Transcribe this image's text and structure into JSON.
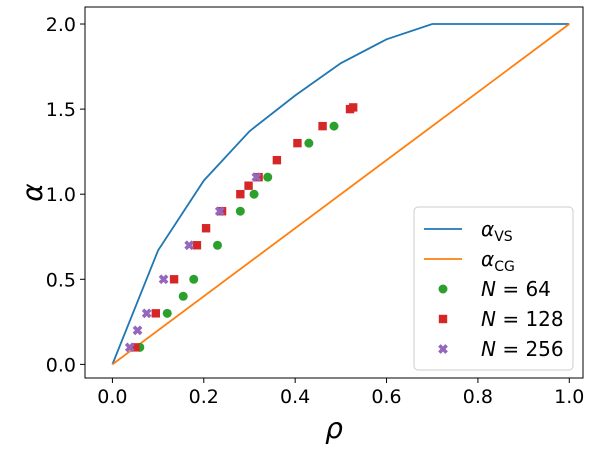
{
  "chart_data": {
    "type": "scatter",
    "xlabel": "ρ",
    "ylabel": "α",
    "xlim": [
      -0.06,
      1.03
    ],
    "ylim": [
      -0.08,
      2.1
    ],
    "xticks": [
      0.0,
      0.2,
      0.4,
      0.6,
      0.8,
      1.0
    ],
    "xtick_labels": [
      "0.0",
      "0.2",
      "0.4",
      "0.6",
      "0.8",
      "1.0"
    ],
    "yticks": [
      0.0,
      0.5,
      1.0,
      1.5,
      2.0
    ],
    "ytick_labels": [
      "0.0",
      "0.5",
      "1.0",
      "1.5",
      "2.0"
    ],
    "grid": false,
    "legend_position": "bottom-right",
    "series": [
      {
        "name": "αVS",
        "legend_main": "α",
        "legend_sub": "VS",
        "kind": "line",
        "color": "#1f77b4",
        "x": [
          0.0,
          0.1,
          0.2,
          0.3,
          0.4,
          0.5,
          0.6,
          0.7,
          0.8,
          0.9,
          1.0
        ],
        "y": [
          0.0,
          0.67,
          1.08,
          1.37,
          1.58,
          1.77,
          1.91,
          2.0,
          2.0,
          2.0,
          2.0
        ]
      },
      {
        "name": "αCG",
        "legend_main": "α",
        "legend_sub": "CG",
        "kind": "line",
        "color": "#ff7f0e",
        "x": [
          0.0,
          1.0
        ],
        "y": [
          0.0,
          2.0
        ]
      },
      {
        "name": "N = 64",
        "legend_main": "N",
        "legend_rest": " = 64",
        "kind": "markers",
        "marker": "circle",
        "color": "#2ca02c",
        "x": [
          0.06,
          0.12,
          0.155,
          0.178,
          0.23,
          0.28,
          0.31,
          0.34,
          0.43,
          0.485
        ],
        "y": [
          0.1,
          0.3,
          0.4,
          0.5,
          0.7,
          0.9,
          1.0,
          1.1,
          1.3,
          1.4
        ]
      },
      {
        "name": "N = 128",
        "legend_main": "N",
        "legend_rest": " = 128",
        "kind": "markers",
        "marker": "square",
        "color": "#d62728",
        "x": [
          0.05,
          0.095,
          0.135,
          0.185,
          0.205,
          0.24,
          0.28,
          0.298,
          0.32,
          0.36,
          0.405,
          0.46,
          0.52,
          0.527
        ],
        "y": [
          0.1,
          0.3,
          0.5,
          0.7,
          0.8,
          0.9,
          1.0,
          1.05,
          1.1,
          1.2,
          1.3,
          1.4,
          1.5,
          1.51
        ]
      },
      {
        "name": "N = 256",
        "legend_main": "N",
        "legend_rest": " = 256",
        "kind": "markers",
        "marker": "x",
        "color": "#9467bd",
        "x": [
          0.038,
          0.055,
          0.075,
          0.112,
          0.168,
          0.235,
          0.315
        ],
        "y": [
          0.1,
          0.2,
          0.3,
          0.5,
          0.7,
          0.9,
          1.1
        ]
      }
    ]
  }
}
